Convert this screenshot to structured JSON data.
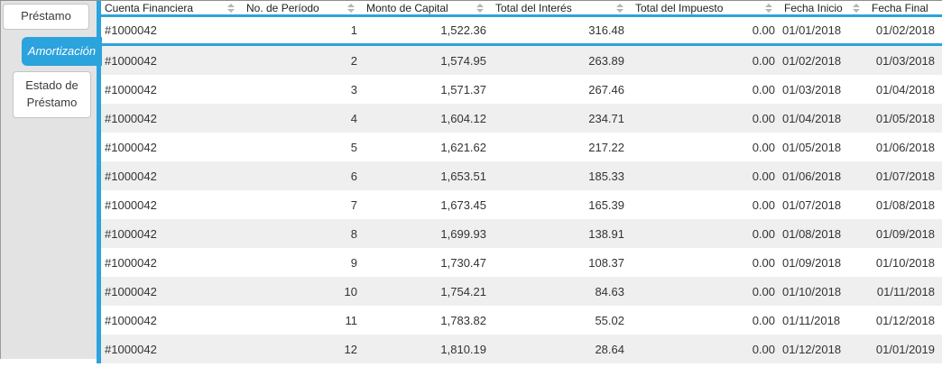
{
  "colors": {
    "accent_blue": "#2BA3DC",
    "row_alt": "#EFEFEF",
    "rail_bg": "#E3E3E3"
  },
  "tabs": [
    {
      "label": "Préstamo",
      "active": false
    },
    {
      "label": "Amortización",
      "active": true
    },
    {
      "label": "Estado de Préstamo",
      "active": false
    }
  ],
  "table": {
    "selected_row": 0,
    "columns": [
      {
        "label": "Cuenta Financiera",
        "sortable": true
      },
      {
        "label": "No. de Período",
        "sortable": true
      },
      {
        "label": "Monto de Capital",
        "sortable": true
      },
      {
        "label": "Total del Interés",
        "sortable": true
      },
      {
        "label": "Total del Impuesto",
        "sortable": true
      },
      {
        "label": "Fecha Inicio",
        "sortable": true
      },
      {
        "label": "Fecha Final",
        "sortable": false
      }
    ],
    "rows": [
      [
        "#1000042",
        "1",
        "1,522.36",
        "316.48",
        "0.00",
        "01/01/2018",
        "01/02/2018"
      ],
      [
        "#1000042",
        "2",
        "1,574.95",
        "263.89",
        "0.00",
        "01/02/2018",
        "01/03/2018"
      ],
      [
        "#1000042",
        "3",
        "1,571.37",
        "267.46",
        "0.00",
        "01/03/2018",
        "01/04/2018"
      ],
      [
        "#1000042",
        "4",
        "1,604.12",
        "234.71",
        "0.00",
        "01/04/2018",
        "01/05/2018"
      ],
      [
        "#1000042",
        "5",
        "1,621.62",
        "217.22",
        "0.00",
        "01/05/2018",
        "01/06/2018"
      ],
      [
        "#1000042",
        "6",
        "1,653.51",
        "185.33",
        "0.00",
        "01/06/2018",
        "01/07/2018"
      ],
      [
        "#1000042",
        "7",
        "1,673.45",
        "165.39",
        "0.00",
        "01/07/2018",
        "01/08/2018"
      ],
      [
        "#1000042",
        "8",
        "1,699.93",
        "138.91",
        "0.00",
        "01/08/2018",
        "01/09/2018"
      ],
      [
        "#1000042",
        "9",
        "1,730.47",
        "108.37",
        "0.00",
        "01/09/2018",
        "01/10/2018"
      ],
      [
        "#1000042",
        "10",
        "1,754.21",
        "84.63",
        "0.00",
        "01/10/2018",
        "01/11/2018"
      ],
      [
        "#1000042",
        "11",
        "1,783.82",
        "55.02",
        "0.00",
        "01/11/2018",
        "01/12/2018"
      ],
      [
        "#1000042",
        "12",
        "1,810.19",
        "28.64",
        "0.00",
        "01/12/2018",
        "01/01/2019"
      ]
    ]
  }
}
